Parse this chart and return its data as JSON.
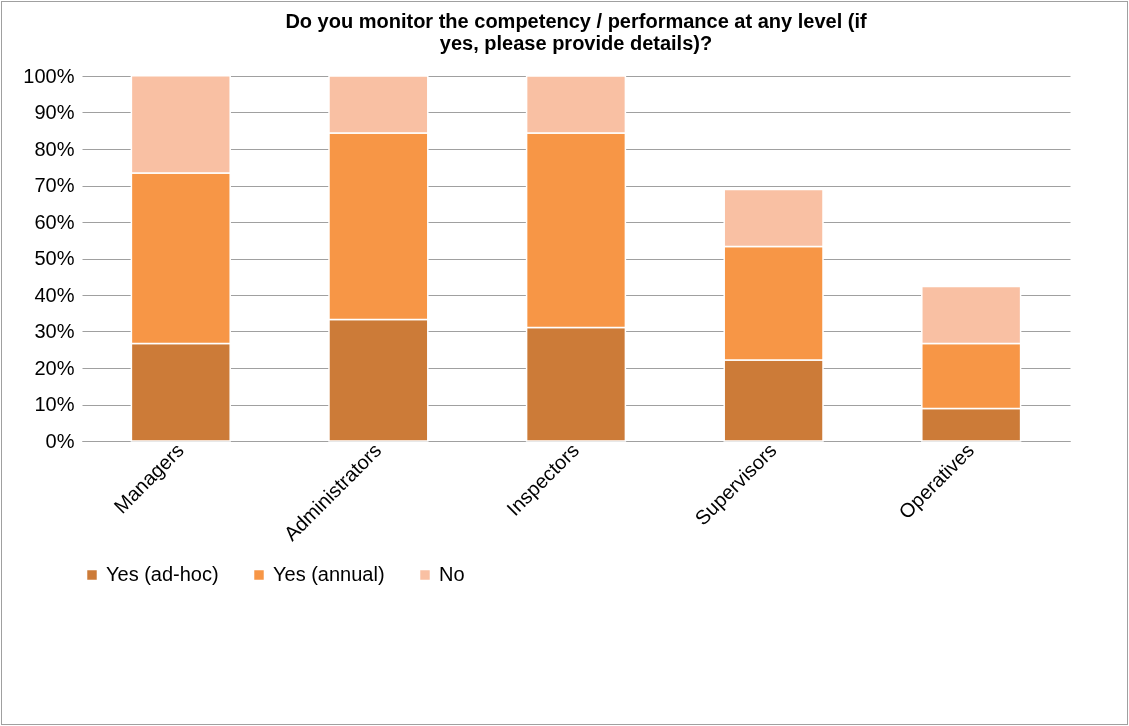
{
  "chart_data": {
    "type": "bar",
    "stacked": true,
    "title": "Do you monitor the competency / performance at any level (if yes, please provide details)?",
    "categories": [
      "Managers",
      "Administrators",
      "Inspectors",
      "Supervisors",
      "Operatives"
    ],
    "series": [
      {
        "name": "Yes (ad-hoc)",
        "color": "#cc7b38",
        "values": [
          26.7,
          33.3,
          31.1,
          22.2,
          8.9
        ]
      },
      {
        "name": "Yes (annual)",
        "color": "#f79646",
        "values": [
          46.7,
          51.1,
          53.3,
          31.1,
          17.8
        ]
      },
      {
        "name": "No",
        "color": "#f9c0a3",
        "values": [
          26.7,
          15.6,
          15.6,
          15.6,
          15.6
        ]
      }
    ],
    "ylim": [
      0,
      100
    ],
    "yticks": [
      {
        "value": 0,
        "label": "0%"
      },
      {
        "value": 10,
        "label": "10%"
      },
      {
        "value": 20,
        "label": "20%"
      },
      {
        "value": 30,
        "label": "30%"
      },
      {
        "value": 40,
        "label": "40%"
      },
      {
        "value": 50,
        "label": "50%"
      },
      {
        "value": 60,
        "label": "60%"
      },
      {
        "value": 70,
        "label": "70%"
      },
      {
        "value": 80,
        "label": "80%"
      },
      {
        "value": 90,
        "label": "90%"
      },
      {
        "value": 100,
        "label": "100%"
      }
    ],
    "grid": "y",
    "legend": "bottom"
  }
}
